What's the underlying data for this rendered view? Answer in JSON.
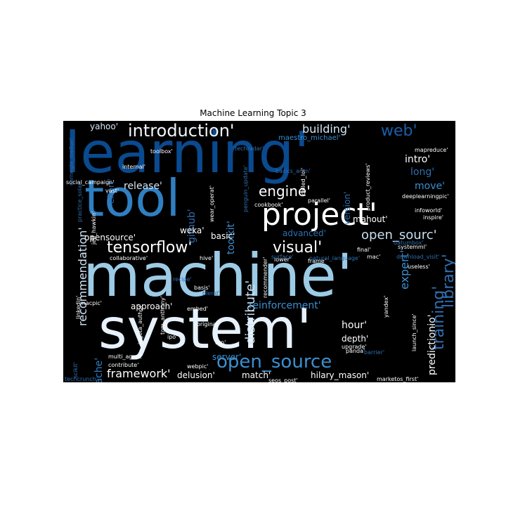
{
  "title": "Machine Learning Topic 3",
  "words": [
    "learning'",
    "tool",
    "project'",
    "machine'",
    "system'",
    "introduction'",
    "building'",
    "web'",
    "engine'",
    "tensorflow'",
    "visual'",
    "open_sourc'",
    "open_source",
    "library'",
    "training'",
    "expert'",
    "distribute'",
    "reinforcement'",
    "recommendation'",
    "late'",
    "framework'",
    "apache'",
    "release'",
    "toolkit'",
    "github'",
    "yahoo'",
    "intro'",
    "long'",
    "move'",
    "mahout'",
    "advanced'",
    "weka'",
    "basic'",
    "opensource'",
    "predictionio'",
    "hour'",
    "depth'",
    "server'",
    "delusion'",
    "match'",
    "hilary_mason'",
    "approach'",
    "effort'",
    "version'",
    "maestro_michael'",
    "toolbox'",
    "internal'",
    "mapreduce'",
    "deeplearningpic'",
    "infoworld'",
    "inspire'",
    "social_campaign'",
    "vast'",
    "jeff_hawkin'",
    "cookbook'",
    "parallel'",
    "mac'",
    "final'",
    "systemml'",
    "useless'",
    "launch_since'",
    "recipe'",
    "basis'",
    "embed'",
    "linkedin'",
    "macpic'",
    "jagota_author'",
    "tom_anthony'",
    "original'",
    "ipo'",
    "tap'",
    "multi_agent'",
    "contribute'",
    "webpic'",
    "panda'",
    "barrier'",
    "yandex'",
    "seos_post'",
    "marketos_first'",
    "collaborative'",
    "hive'",
    "upgrade'",
    "frame'",
    "lower'",
    "product_reviews'",
    "called_lol'",
    "carnegie_mellon'",
    "surface'",
    "recommender'",
    "datumbox'",
    "download_visit'",
    "penguin_update'",
    "wear_operat'",
    "basics_arun'",
    "practice_solar'",
    "techcrunch'",
    "scikit'",
    "blend'",
    "natural_language'",
    "techradar'"
  ]
}
